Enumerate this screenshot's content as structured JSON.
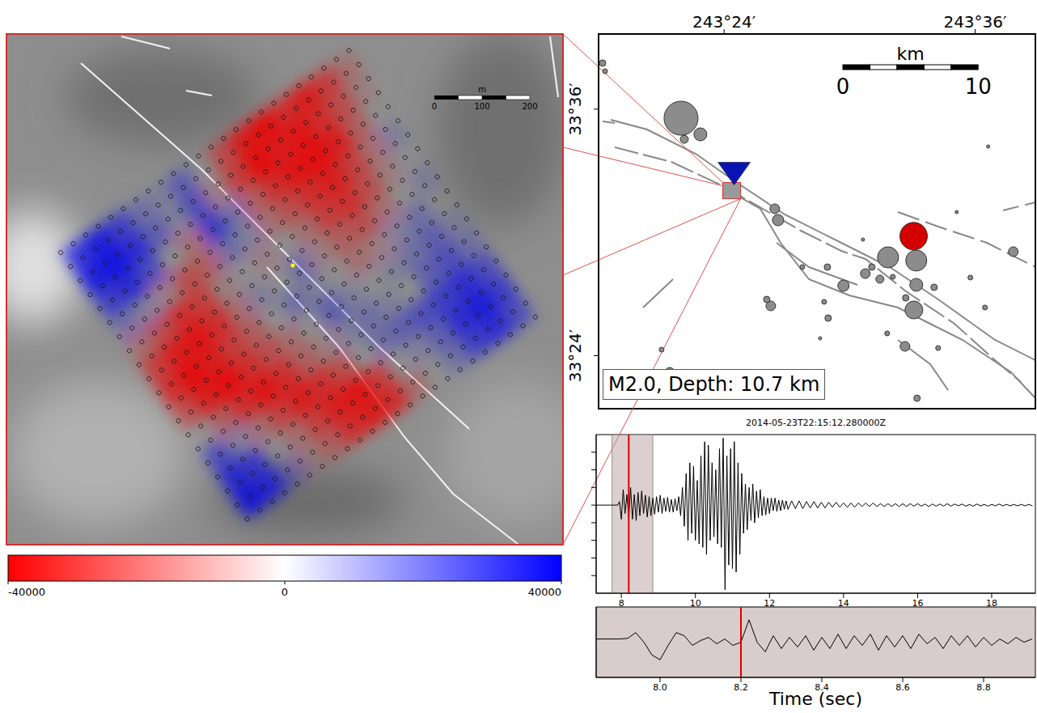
{
  "chart_data": [
    {
      "type": "heatmap",
      "cells": [
        [
          30000,
          35000,
          25000,
          10000,
          5000,
          15000,
          0,
          -20000,
          -35000,
          -40000,
          -30000,
          -35000,
          -25000,
          -10000
        ],
        [
          35000,
          38000,
          30000,
          15000,
          5000,
          20000,
          -5000,
          -25000,
          -40000,
          -35000,
          -38000,
          -30000,
          -20000,
          -5000
        ],
        [
          25000,
          30000,
          20000,
          0,
          -10000,
          25000,
          10000,
          -15000,
          -30000,
          -38000,
          -40000,
          -35000,
          -15000,
          0
        ],
        [
          10000,
          5000,
          -5000,
          -20000,
          -15000,
          10000,
          5000,
          -10000,
          -20000,
          -30000,
          -35000,
          -25000,
          -10000,
          5000
        ],
        [
          -10000,
          -20000,
          -30000,
          -25000,
          -5000,
          0,
          -5000,
          0,
          -10000,
          -25000,
          -30000,
          -20000,
          -5000,
          0
        ],
        [
          -25000,
          -35000,
          -38000,
          -30000,
          -10000,
          5000,
          0,
          10000,
          -5000,
          -15000,
          -20000,
          -10000,
          0,
          5000
        ],
        [
          -30000,
          -40000,
          -35000,
          -25000,
          -15000,
          0,
          10000,
          5000,
          0,
          -10000,
          -5000,
          5000,
          10000,
          0
        ],
        [
          -20000,
          -35000,
          -40000,
          -30000,
          -20000,
          -10000,
          0,
          15000,
          5000,
          0,
          5000,
          10000,
          15000,
          5000
        ],
        [
          0,
          -15000,
          -30000,
          -38000,
          -30000,
          -15000,
          -5000,
          5000,
          10000,
          5000,
          0,
          15000,
          20000,
          10000
        ],
        [
          20000,
          5000,
          -10000,
          -25000,
          -35000,
          -30000,
          -20000,
          0,
          10000,
          15000,
          20000,
          25000,
          30000,
          20000
        ],
        [
          30000,
          25000,
          0,
          -10000,
          -25000,
          -35000,
          -38000,
          -25000,
          0,
          5000,
          15000,
          30000,
          35000,
          25000
        ],
        [
          35000,
          30000,
          10000,
          -5000,
          -15000,
          -30000,
          -35000,
          -30000,
          -10000,
          0,
          10000,
          25000,
          30000,
          20000
        ]
      ],
      "colorbar": {
        "range": [
          -40000,
          40000
        ],
        "ticks": [
          -40000,
          0,
          40000
        ]
      },
      "scale_bar": {
        "unit": "m",
        "ticks": [
          0,
          100,
          200
        ]
      }
    },
    {
      "type": "scatter",
      "xlim": [
        243.3,
        243.648
      ],
      "ylim": [
        33.357,
        33.661
      ],
      "xticks": [
        {
          "value": 243.4,
          "label": "243°24′"
        },
        {
          "value": 243.6,
          "label": "243°36′"
        }
      ],
      "yticks": [
        {
          "value": 33.4,
          "label": "33°24′"
        },
        {
          "value": 33.6,
          "label": "33°36′"
        }
      ],
      "series": [
        {
          "color": "#8c8c8c",
          "marker": "circle",
          "x": [
            243.3032,
            243.3052,
            243.3657,
            243.3811,
            243.3683,
            243.4404,
            243.443,
            243.5306,
            243.5531,
            243.5531,
            243.5512,
            243.5125,
            243.5177,
            243.4951,
            243.5241,
            243.5447,
            243.5673,
            243.6304,
            243.4372,
            243.434,
            243.4829,
            243.5441,
            243.5299,
            243.5537,
            243.3567,
            243.4823,
            243.5705,
            243.6078,
            243.5962,
            243.4623,
            243.4797,
            243.6104,
            243.5853,
            243.5106,
            243.5344,
            243.4765,
            243.3502
          ],
          "y": [
            33.6374,
            33.6308,
            33.5927,
            33.5796,
            33.5756,
            33.5192,
            33.51,
            33.4798,
            33.4772,
            33.4575,
            33.4371,
            33.4666,
            33.4719,
            33.4568,
            33.4621,
            33.4469,
            33.4555,
            33.4844,
            33.4404,
            33.4456,
            33.4305,
            33.4076,
            33.4181,
            33.3655,
            33.3865,
            33.4719,
            33.4062,
            33.4391,
            33.4634,
            33.4719,
            33.4437,
            33.5697,
            33.5165,
            33.4942,
            33.464,
            33.4141,
            33.4049
          ],
          "sizes": [
            0.4,
            0.3,
            2.1,
            0.8,
            0.5,
            0.6,
            0.7,
            1.3,
            1.3,
            0.8,
            1.1,
            0.6,
            0.4,
            0.7,
            0.5,
            0.4,
            0.4,
            0.6,
            0.6,
            0.4,
            0.4,
            0.6,
            0.3,
            0.4,
            0.6,
            0.4,
            0.3,
            0.3,
            0.3,
            0.3,
            0.3,
            0.2,
            0.2,
            0.2,
            0.3,
            0.2,
            0.3
          ]
        },
        {
          "color": "#0a14b4",
          "marker": "triangle",
          "x": [
            243.408
          ],
          "y": [
            33.549
          ]
        },
        {
          "color": "#d40000",
          "marker": "circle",
          "x": [
            243.551
          ],
          "y": [
            33.497
          ],
          "sizes": [
            1.7
          ]
        }
      ],
      "annotations": [
        "M2.0, Depth: 10.7 km"
      ],
      "scale_bar": {
        "unit": "km",
        "ticks": [
          0,
          10
        ]
      }
    },
    {
      "type": "line",
      "title": "2014-05-23T22:15:12.280000Z",
      "color": "#000000",
      "x": [
        7.32,
        7.9,
        7.95,
        8.0,
        8.05,
        8.1,
        8.15,
        8.2,
        8.25,
        8.3,
        8.35,
        8.4,
        8.45,
        8.5,
        8.55,
        8.6,
        8.65,
        8.7,
        8.75,
        8.8,
        8.85,
        8.9,
        8.95,
        9.0,
        9.05,
        9.1,
        9.15,
        9.2,
        9.25,
        9.3,
        9.35,
        9.4,
        9.45,
        9.5,
        9.55,
        9.6,
        9.65,
        9.7,
        9.75,
        9.8,
        9.85,
        9.9,
        9.95,
        10.0,
        10.05,
        10.1,
        10.15,
        10.2,
        10.25,
        10.3,
        10.35,
        10.4,
        10.45,
        10.5,
        10.55,
        10.6,
        10.65,
        10.7,
        10.75,
        10.8,
        10.85,
        10.9,
        10.95,
        11.0,
        11.05,
        11.1,
        11.15,
        11.2,
        11.25,
        11.3,
        11.35,
        11.4,
        11.45,
        11.5,
        11.55,
        11.6,
        11.65,
        11.7,
        11.75,
        11.8,
        11.85,
        11.9,
        11.95,
        12.0,
        12.05,
        12.1,
        12.15,
        12.2,
        12.25,
        12.3,
        12.35,
        12.4,
        12.45,
        12.5,
        12.6,
        12.7,
        12.8,
        12.9,
        13.0,
        13.1,
        13.2,
        13.3,
        13.4,
        13.5,
        13.6,
        13.7,
        13.8,
        13.9,
        14.0,
        14.1,
        14.2,
        14.3,
        14.4,
        14.5,
        14.6,
        14.7,
        14.8,
        14.9,
        15.0,
        15.1,
        15.2,
        15.3,
        15.4,
        15.5,
        15.6,
        15.7,
        15.8,
        15.9,
        16.0,
        16.1,
        16.2,
        16.3,
        16.4,
        16.5,
        16.6,
        16.7,
        16.8,
        16.9,
        17.0,
        17.1,
        17.2,
        17.3,
        17.4,
        17.5,
        17.6,
        17.7,
        17.8,
        17.9,
        18.0,
        18.1,
        18.2,
        18.3,
        18.4,
        18.5,
        18.6,
        18.7,
        18.8,
        18.9,
        19.0,
        19.1
      ],
      "values": [
        0,
        0,
        0.05,
        -0.2,
        0.22,
        -0.12,
        0.15,
        -0.18,
        0.25,
        -0.2,
        0.15,
        -0.22,
        0.18,
        -0.15,
        0.2,
        -0.12,
        0.14,
        -0.17,
        0.12,
        -0.15,
        0.1,
        -0.13,
        0.12,
        -0.1,
        0.14,
        -0.12,
        0.1,
        -0.09,
        0.11,
        -0.1,
        0.08,
        -0.1,
        0.09,
        -0.08,
        0.12,
        -0.15,
        0.25,
        -0.3,
        0.45,
        -0.5,
        0.6,
        -0.4,
        0.55,
        -0.5,
        0.35,
        -0.55,
        0.7,
        -0.6,
        0.9,
        -0.7,
        0.85,
        -0.5,
        0.6,
        -0.45,
        0.5,
        -0.55,
        0.8,
        -0.6,
        0.95,
        -1.2,
        0.7,
        -0.85,
        0.8,
        -0.9,
        0.9,
        -0.95,
        0.6,
        -0.7,
        0.45,
        -0.4,
        0.3,
        -0.35,
        0.25,
        -0.22,
        0.3,
        -0.25,
        0.2,
        -0.18,
        0.22,
        -0.15,
        0.12,
        -0.14,
        0.1,
        -0.12,
        0.1,
        -0.08,
        0.1,
        -0.09,
        0.07,
        -0.08,
        0.07,
        -0.06,
        0.06,
        -0.06,
        0.06,
        -0.05,
        0.06,
        -0.05,
        0.05,
        -0.04,
        0.05,
        -0.04,
        0.04,
        -0.04,
        0.04,
        -0.03,
        0.04,
        -0.03,
        0.03,
        -0.03,
        0.03,
        -0.03,
        0.03,
        -0.02,
        0.03,
        -0.02,
        0.03,
        -0.02,
        0.02,
        -0.02,
        0.02,
        -0.02,
        0.02,
        -0.02,
        0.02,
        -0.02,
        0.02,
        -0.015,
        0.02,
        -0.015,
        0.015,
        -0.02,
        0.015,
        -0.015,
        0.015,
        -0.015,
        0.02,
        -0.015,
        0.015,
        -0.01,
        0.015,
        -0.015,
        0.01,
        -0.015,
        0.015,
        -0.01,
        0.01,
        -0.015,
        0.01,
        -0.01,
        0.015,
        -0.01,
        0.01,
        -0.01,
        0.01,
        -0.01,
        0.01,
        -0.01,
        0.01,
        -0.01
      ],
      "xlim": [
        7.32,
        19.18
      ],
      "xticks": [
        8,
        10,
        12,
        14,
        16,
        18
      ],
      "ylim": [
        -1.25,
        1.0
      ],
      "yticks": [
        -1,
        -0.75,
        -0.5,
        -0.25,
        0,
        0.25,
        0.5,
        0.75
      ],
      "tick_labels": "x",
      "window": [
        7.75,
        8.85
      ],
      "pick": 8.2
    },
    {
      "type": "line",
      "color": "#000000",
      "x": [
        7.84,
        7.86,
        7.88,
        7.9,
        7.92,
        7.94,
        7.96,
        7.98,
        8.0,
        8.02,
        8.04,
        8.06,
        8.08,
        8.1,
        8.12,
        8.14,
        8.16,
        8.18,
        8.2,
        8.22,
        8.24,
        8.26,
        8.28,
        8.3,
        8.32,
        8.34,
        8.36,
        8.38,
        8.4,
        8.42,
        8.44,
        8.46,
        8.48,
        8.5,
        8.52,
        8.54,
        8.56,
        8.58,
        8.6,
        8.62,
        8.64,
        8.66,
        8.68,
        8.7,
        8.72,
        8.74,
        8.76,
        8.78,
        8.8,
        8.82,
        8.84,
        8.86,
        8.88,
        8.9,
        8.92
      ],
      "values": [
        0,
        0,
        0,
        0,
        0.02,
        0.2,
        -0.1,
        -0.5,
        -0.65,
        -0.2,
        0.2,
        0.1,
        -0.2,
        -0.05,
        0.05,
        -0.15,
        0.0,
        -0.2,
        -0.1,
        0.6,
        -0.1,
        -0.4,
        0.1,
        -0.3,
        0.05,
        -0.25,
        0.1,
        -0.35,
        0.05,
        -0.3,
        0.15,
        -0.3,
        0.1,
        -0.2,
        0.15,
        -0.35,
        0.1,
        -0.25,
        0.1,
        -0.3,
        0.15,
        -0.15,
        0.05,
        -0.3,
        0.1,
        -0.2,
        0.1,
        -0.25,
        0.05,
        -0.2,
        0.0,
        -0.15,
        0.05,
        -0.1,
        0.0
      ],
      "xlim": [
        7.842,
        8.928
      ],
      "xticks": [
        {
          "value": 8,
          "label": "8.0"
        },
        {
          "value": 8.2,
          "label": "8.2"
        },
        {
          "value": 8.4,
          "label": "8.4"
        },
        {
          "value": 8.6,
          "label": "8.6"
        },
        {
          "value": 8.8,
          "label": "8.8"
        }
      ],
      "ylim": [
        -1.2,
        1.0
      ],
      "tick_labels": "x",
      "xlabel": "Time (sec)",
      "pick": 8.2
    }
  ]
}
